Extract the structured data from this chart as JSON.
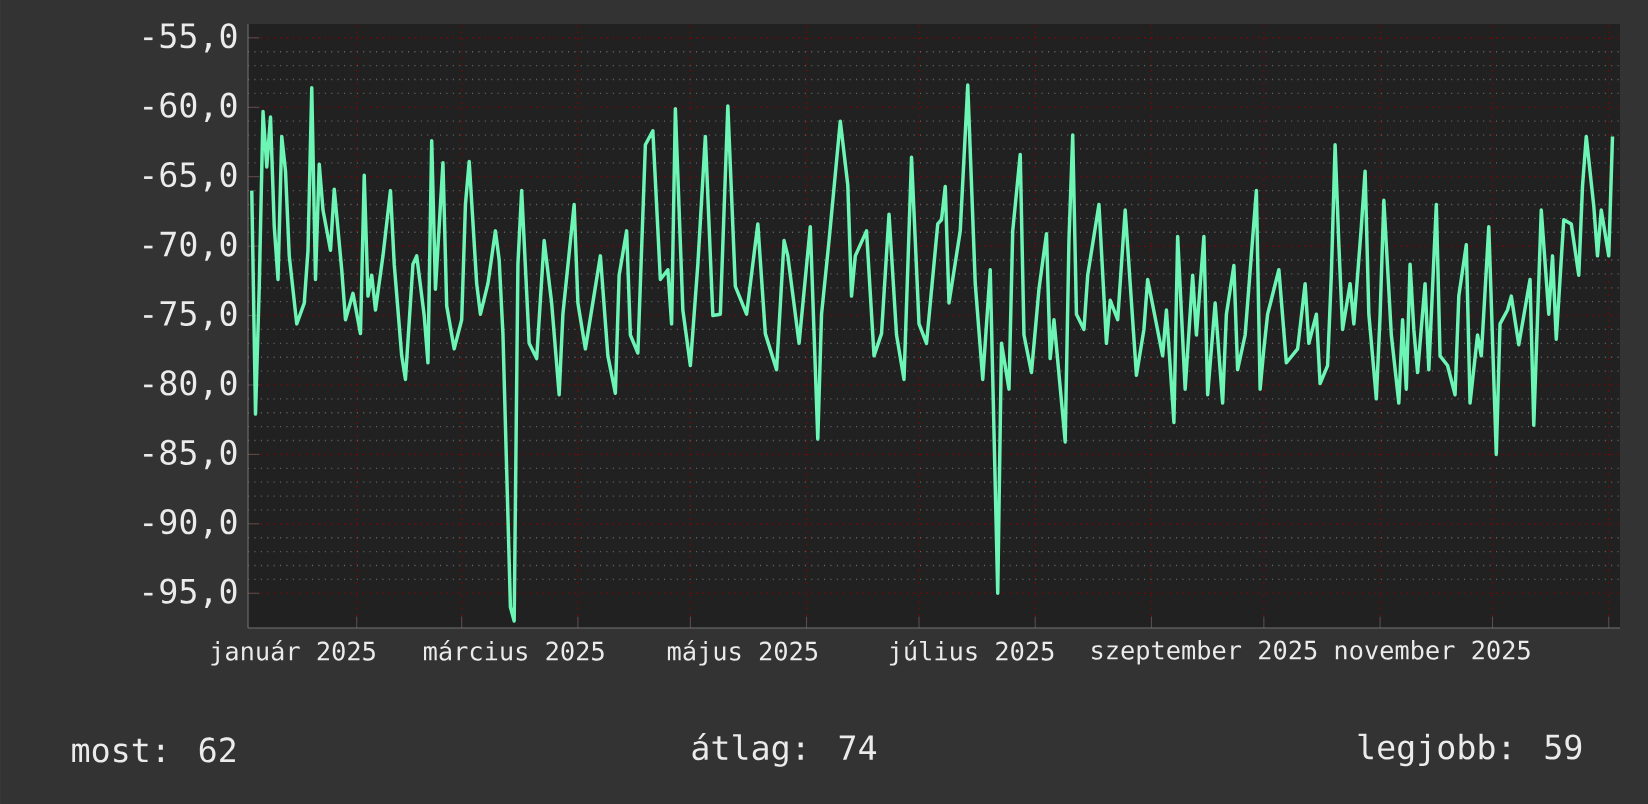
{
  "chart_data": {
    "type": "line",
    "grid": true,
    "line_style": "solid",
    "xlim": [
      "2025-01-03",
      "2026-01-04"
    ],
    "ylim": [
      -97.5,
      -54
    ],
    "yticks": [
      {
        "value": -55,
        "label": "-55,0"
      },
      {
        "value": -60,
        "label": "-60,0"
      },
      {
        "value": -65,
        "label": "-65,0"
      },
      {
        "value": -70,
        "label": "-70,0"
      },
      {
        "value": -75,
        "label": "-75,0"
      },
      {
        "value": -80,
        "label": "-80,0"
      },
      {
        "value": -85,
        "label": "-85,0"
      },
      {
        "value": -90,
        "label": "-90,0"
      },
      {
        "value": -95,
        "label": "-95,0"
      }
    ],
    "xticks": [
      {
        "value": "2025-01-15",
        "label": "január 2025"
      },
      {
        "value": "2025-02-01",
        "label": null
      },
      {
        "value": "2025-03-01",
        "label": null
      },
      {
        "value": "2025-03-15",
        "label": "március 2025"
      },
      {
        "value": "2025-04-01",
        "label": null
      },
      {
        "value": "2025-05-01",
        "label": null
      },
      {
        "value": "2025-05-15",
        "label": "május 2025"
      },
      {
        "value": "2025-06-01",
        "label": null
      },
      {
        "value": "2025-07-01",
        "label": null
      },
      {
        "value": "2025-07-15",
        "label": "július 2025"
      },
      {
        "value": "2025-08-01",
        "label": null
      },
      {
        "value": "2025-09-01",
        "label": null
      },
      {
        "value": "2025-09-15",
        "label": "szeptember 2025"
      },
      {
        "value": "2025-10-01",
        "label": null
      },
      {
        "value": "2025-11-01",
        "label": null
      },
      {
        "value": "2025-11-15",
        "label": "november 2025"
      },
      {
        "value": "2025-12-01",
        "label": null
      },
      {
        "value": "2026-01-01",
        "label": null
      }
    ],
    "annotations": [
      "most: 62",
      "átlag: 74",
      "legjobb: 59"
    ],
    "x": [
      "2025-01-04",
      "2025-01-05",
      "2025-01-06",
      "2025-01-07",
      "2025-01-08",
      "2025-01-09",
      "2025-01-10",
      "2025-01-11",
      "2025-01-12",
      "2025-01-13",
      "2025-01-14",
      "2025-01-16",
      "2025-01-18",
      "2025-01-19",
      "2025-01-20",
      "2025-01-21",
      "2025-01-22",
      "2025-01-23",
      "2025-01-25",
      "2025-01-26",
      "2025-01-28",
      "2025-01-29",
      "2025-01-31",
      "2025-02-02",
      "2025-02-03",
      "2025-02-04",
      "2025-02-05",
      "2025-02-06",
      "2025-02-08",
      "2025-02-10",
      "2025-02-11",
      "2025-02-13",
      "2025-02-14",
      "2025-02-16",
      "2025-02-17",
      "2025-02-19",
      "2025-02-20",
      "2025-02-21",
      "2025-02-22",
      "2025-02-24",
      "2025-02-25",
      "2025-02-27",
      "2025-03-01",
      "2025-03-02",
      "2025-03-03",
      "2025-03-05",
      "2025-03-06",
      "2025-03-08",
      "2025-03-10",
      "2025-03-11",
      "2025-03-12",
      "2025-03-14",
      "2025-03-15",
      "2025-03-16",
      "2025-03-17",
      "2025-03-19",
      "2025-03-21",
      "2025-03-23",
      "2025-03-25",
      "2025-03-27",
      "2025-03-28",
      "2025-03-31",
      "2025-04-01",
      "2025-04-03",
      "2025-04-07",
      "2025-04-09",
      "2025-04-11",
      "2025-04-12",
      "2025-04-14",
      "2025-04-15",
      "2025-04-17",
      "2025-04-19",
      "2025-04-21",
      "2025-04-23",
      "2025-04-25",
      "2025-04-26",
      "2025-04-27",
      "2025-04-29",
      "2025-05-01",
      "2025-05-03",
      "2025-05-05",
      "2025-05-07",
      "2025-05-09",
      "2025-05-11",
      "2025-05-13",
      "2025-05-16",
      "2025-05-19",
      "2025-05-21",
      "2025-05-24",
      "2025-05-26",
      "2025-05-27",
      "2025-05-30",
      "2025-06-02",
      "2025-06-04",
      "2025-06-05",
      "2025-06-07",
      "2025-06-10",
      "2025-06-12",
      "2025-06-13",
      "2025-06-14",
      "2025-06-17",
      "2025-06-19",
      "2025-06-21",
      "2025-06-23",
      "2025-06-25",
      "2025-06-27",
      "2025-06-29",
      "2025-07-01",
      "2025-07-03",
      "2025-07-06",
      "2025-07-07",
      "2025-07-08",
      "2025-07-09",
      "2025-07-12",
      "2025-07-14",
      "2025-07-16",
      "2025-07-18",
      "2025-07-20",
      "2025-07-22",
      "2025-07-23",
      "2025-07-25",
      "2025-07-26",
      "2025-07-28",
      "2025-07-29",
      "2025-07-31",
      "2025-08-02",
      "2025-08-04",
      "2025-08-05",
      "2025-08-06",
      "2025-08-09",
      "2025-08-10",
      "2025-08-11",
      "2025-08-12",
      "2025-08-14",
      "2025-08-15",
      "2025-08-18",
      "2025-08-20",
      "2025-08-21",
      "2025-08-23",
      "2025-08-25",
      "2025-08-28",
      "2025-08-30",
      "2025-08-31",
      "2025-09-04",
      "2025-09-05",
      "2025-09-07",
      "2025-09-08",
      "2025-09-10",
      "2025-09-12",
      "2025-09-13",
      "2025-09-15",
      "2025-09-16",
      "2025-09-18",
      "2025-09-20",
      "2025-09-21",
      "2025-09-23",
      "2025-09-24",
      "2025-09-26",
      "2025-09-29",
      "2025-09-30",
      "2025-10-01",
      "2025-10-02",
      "2025-10-05",
      "2025-10-07",
      "2025-10-10",
      "2025-10-12",
      "2025-10-13",
      "2025-10-15",
      "2025-10-16",
      "2025-10-18",
      "2025-10-19",
      "2025-10-20",
      "2025-10-21",
      "2025-10-22",
      "2025-10-24",
      "2025-10-25",
      "2025-10-27",
      "2025-10-28",
      "2025-10-29",
      "2025-10-31",
      "2025-11-01",
      "2025-11-02",
      "2025-11-04",
      "2025-11-06",
      "2025-11-07",
      "2025-11-08",
      "2025-11-09",
      "2025-11-10",
      "2025-11-11",
      "2025-11-13",
      "2025-11-14",
      "2025-11-16",
      "2025-11-17",
      "2025-11-19",
      "2025-11-21",
      "2025-11-22",
      "2025-11-24",
      "2025-11-25",
      "2025-11-27",
      "2025-11-28",
      "2025-11-30",
      "2025-12-02",
      "2025-12-03",
      "2025-12-05",
      "2025-12-06",
      "2025-12-08",
      "2025-12-11",
      "2025-12-12",
      "2025-12-14",
      "2025-12-16",
      "2025-12-17",
      "2025-12-18",
      "2025-12-20",
      "2025-12-22",
      "2025-12-24",
      "2025-12-25",
      "2025-12-26",
      "2025-12-28",
      "2025-12-29",
      "2025-12-30",
      "2026-01-01",
      "2026-01-02"
    ],
    "series": [
      {
        "color": "#6cf5b4",
        "values": [
          -66.0,
          -82.1,
          -72.9,
          -60.3,
          -64.3,
          -60.7,
          -68.6,
          -72.4,
          -62.1,
          -64.6,
          -70.7,
          -75.6,
          -74.1,
          -70.3,
          -58.6,
          -72.4,
          -64.1,
          -67.4,
          -70.3,
          -65.9,
          -71.7,
          -75.3,
          -73.4,
          -76.3,
          -64.9,
          -73.6,
          -72.1,
          -74.6,
          -70.7,
          -66.0,
          -71.3,
          -77.9,
          -79.6,
          -71.3,
          -70.7,
          -75.0,
          -78.4,
          -62.4,
          -73.1,
          -64.0,
          -74.3,
          -77.4,
          -75.3,
          -67.0,
          -63.9,
          -72.7,
          -74.9,
          -72.7,
          -68.9,
          -71.0,
          -76.3,
          -96.0,
          -97.0,
          -71.3,
          -66.0,
          -77.0,
          -78.1,
          -69.6,
          -74.1,
          -80.7,
          -74.9,
          -67.0,
          -74.1,
          -77.4,
          -70.7,
          -77.9,
          -80.6,
          -72.1,
          -68.9,
          -76.4,
          -77.7,
          -62.7,
          -61.7,
          -72.4,
          -71.7,
          -75.6,
          -60.1,
          -74.6,
          -78.6,
          -71.3,
          -62.1,
          -75.0,
          -74.9,
          -59.9,
          -72.9,
          -74.9,
          -68.4,
          -76.3,
          -78.9,
          -69.6,
          -70.7,
          -77.0,
          -68.6,
          -83.9,
          -74.9,
          -69.6,
          -61.0,
          -65.6,
          -73.6,
          -70.7,
          -68.9,
          -77.9,
          -76.3,
          -67.7,
          -76.4,
          -79.6,
          -63.6,
          -75.6,
          -77.0,
          -68.4,
          -68.1,
          -65.7,
          -74.1,
          -68.9,
          -58.4,
          -72.7,
          -79.6,
          -71.7,
          -95.0,
          -77.0,
          -80.3,
          -68.9,
          -63.4,
          -76.4,
          -79.1,
          -73.1,
          -69.1,
          -78.1,
          -75.3,
          -84.1,
          -69.6,
          -62.0,
          -74.9,
          -76.0,
          -72.1,
          -67.0,
          -77.0,
          -73.9,
          -75.3,
          -67.4,
          -79.3,
          -76.0,
          -72.4,
          -77.9,
          -74.6,
          -82.7,
          -69.3,
          -80.3,
          -72.1,
          -76.4,
          -69.3,
          -80.7,
          -74.1,
          -81.3,
          -74.9,
          -71.4,
          -78.9,
          -76.4,
          -66.0,
          -80.3,
          -77.4,
          -74.9,
          -71.7,
          -78.4,
          -77.4,
          -72.7,
          -77.0,
          -74.9,
          -79.9,
          -78.6,
          -72.1,
          -62.7,
          -69.9,
          -76.0,
          -72.7,
          -75.6,
          -68.6,
          -64.6,
          -74.9,
          -81.0,
          -75.0,
          -66.7,
          -76.4,
          -81.3,
          -75.3,
          -80.3,
          -71.3,
          -76.0,
          -79.1,
          -72.7,
          -78.9,
          -67.0,
          -77.9,
          -78.6,
          -80.7,
          -73.6,
          -69.9,
          -81.3,
          -76.4,
          -77.9,
          -68.6,
          -85.0,
          -75.6,
          -74.6,
          -73.6,
          -77.1,
          -72.4,
          -82.9,
          -67.4,
          -74.9,
          -70.7,
          -76.7,
          -68.1,
          -68.4,
          -72.1,
          -65.7,
          -62.1,
          -67.1,
          -70.7,
          -67.4,
          -70.7,
          -62.1
        ]
      }
    ]
  }
}
